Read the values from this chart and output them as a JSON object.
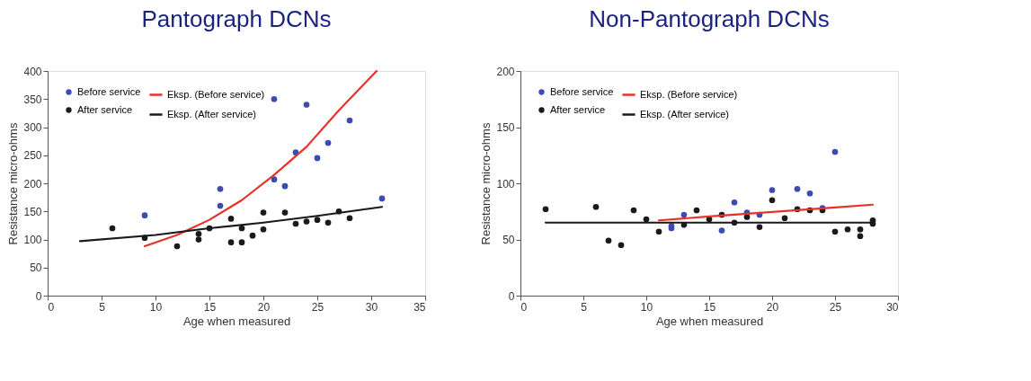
{
  "chart_data": [
    {
      "type": "scatter",
      "title": "Pantograph DCNs",
      "xlabel": "Age when measured",
      "ylabel": "Resistance micro-ohms",
      "xlim": [
        0,
        35
      ],
      "xticks": [
        0,
        5,
        10,
        15,
        20,
        25,
        30,
        35
      ],
      "ylim": [
        0,
        400
      ],
      "yticks": [
        0,
        50,
        100,
        150,
        200,
        250,
        300,
        350,
        400
      ],
      "grid": false,
      "legend": "top left",
      "marker": "circle",
      "series": [
        {
          "name": "Before service",
          "color": "#3b4bb0",
          "x": [
            9,
            16,
            16,
            21,
            21,
            22,
            23,
            24,
            25,
            26,
            28,
            31
          ],
          "values": [
            143,
            190,
            160,
            350,
            207,
            195,
            255,
            340,
            245,
            272,
            312,
            173
          ]
        },
        {
          "name": "After service",
          "color": "#1a1a1a",
          "x": [
            6,
            9,
            12,
            14,
            14,
            15,
            17,
            17,
            18,
            18,
            19,
            20,
            20,
            22,
            23,
            24,
            25,
            26,
            27,
            28
          ],
          "values": [
            120,
            103,
            88,
            110,
            100,
            120,
            137,
            95,
            120,
            95,
            107,
            148,
            118,
            148,
            128,
            132,
            135,
            130,
            150,
            138
          ]
        },
        {
          "name": "Eksp. (Before service)",
          "type": "line",
          "marker": "none",
          "color": "#e8312a",
          "x": [
            9,
            12,
            15,
            18,
            21,
            24,
            27,
            30.5
          ],
          "values": [
            88,
            108,
            135,
            170,
            215,
            265,
            330,
            400
          ]
        },
        {
          "name": "Eksp. (After service)",
          "type": "line",
          "marker": "none",
          "color": "#1a1a1a",
          "x": [
            3,
            10,
            15,
            20,
            25,
            31
          ],
          "values": [
            97,
            108,
            120,
            130,
            142,
            158
          ]
        }
      ]
    },
    {
      "type": "scatter",
      "title": "Non-Pantograph DCNs",
      "xlabel": "Age when measured",
      "ylabel": "Resistance micro-ohms",
      "xlim": [
        0,
        30
      ],
      "xticks": [
        0,
        5,
        10,
        15,
        20,
        25,
        30
      ],
      "ylim": [
        0,
        200
      ],
      "yticks": [
        0,
        50,
        100,
        150,
        200
      ],
      "grid": false,
      "legend": "top left",
      "marker": "circle",
      "series": [
        {
          "name": "Before service",
          "color": "#3b4bb0",
          "x": [
            12,
            12,
            13,
            16,
            17,
            18,
            19,
            20,
            22,
            23,
            24,
            25
          ],
          "values": [
            60,
            62,
            72,
            58,
            83,
            74,
            72,
            94,
            95,
            91,
            78,
            128
          ]
        },
        {
          "name": "After service",
          "color": "#1a1a1a",
          "x": [
            2,
            6,
            7,
            8,
            9,
            10,
            11,
            13,
            14,
            15,
            16,
            17,
            18,
            19,
            20,
            21,
            22,
            23,
            24,
            25,
            26,
            27,
            27,
            28,
            28
          ],
          "values": [
            77,
            79,
            49,
            45,
            76,
            68,
            57,
            63,
            76,
            68,
            72,
            65,
            70,
            61,
            85,
            69,
            77,
            76,
            76,
            57,
            59,
            59,
            53,
            64,
            67
          ]
        },
        {
          "name": "Eksp. (Before service)",
          "type": "line",
          "marker": "none",
          "color": "#e8312a",
          "x": [
            11,
            15,
            20,
            25,
            28
          ],
          "values": [
            67,
            70.5,
            74.5,
            78.5,
            81
          ]
        },
        {
          "name": "Eksp. (After service)",
          "type": "line",
          "marker": "none",
          "color": "#1a1a1a",
          "x": [
            2,
            28
          ],
          "values": [
            65,
            65
          ]
        }
      ]
    }
  ]
}
